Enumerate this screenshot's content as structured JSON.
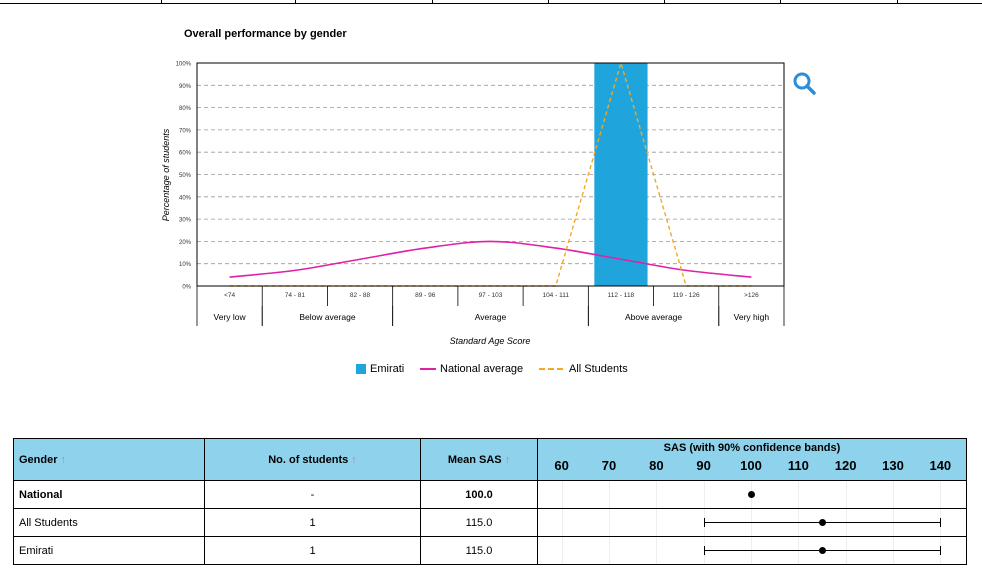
{
  "chart_data": {
    "type": "bar",
    "title": "Overall performance by gender",
    "xlabel": "Standard Age Score",
    "ylabel": "Percentage of students",
    "ylim": [
      0,
      100
    ],
    "yticks": [
      "0%",
      "10%",
      "20%",
      "30%",
      "40%",
      "50%",
      "60%",
      "70%",
      "80%",
      "90%",
      "100%"
    ],
    "categories": [
      "<74",
      "74 - 81",
      "82 - 88",
      "89 - 96",
      "97 - 103",
      "104 - 111",
      "112 - 118",
      "119 - 126",
      ">126"
    ],
    "bands": [
      {
        "label": "Very low",
        "from": 0,
        "to": 0
      },
      {
        "label": "Below average",
        "from": 1,
        "to": 2
      },
      {
        "label": "Average",
        "from": 3,
        "to": 5
      },
      {
        "label": "Above average",
        "from": 6,
        "to": 7
      },
      {
        "label": "Very high",
        "from": 8,
        "to": 8
      }
    ],
    "series": [
      {
        "name": "Emirati",
        "kind": "bar",
        "color": "#1fa5dc",
        "values": [
          0,
          0,
          0,
          0,
          0,
          0,
          100,
          0,
          0
        ]
      },
      {
        "name": "National average",
        "kind": "line",
        "color": "#e020a8",
        "values": [
          4,
          7,
          12,
          17,
          20,
          17,
          12,
          7,
          4
        ]
      },
      {
        "name": "All Students",
        "kind": "dashed",
        "color": "#f5a623",
        "values": [
          0,
          0,
          0,
          0,
          0,
          0,
          100,
          0,
          0
        ]
      }
    ],
    "grid": true,
    "legend": "bottom"
  },
  "table": {
    "headers": {
      "gender": "Gender",
      "students": "No. of students",
      "mean": "Mean SAS",
      "sas": "SAS (with 90% confidence bands)"
    },
    "sas_axis": {
      "min": 55,
      "max": 145,
      "ticks": [
        60,
        70,
        80,
        90,
        100,
        110,
        120,
        130,
        140
      ]
    },
    "rows": [
      {
        "gender": "National",
        "students": "-",
        "mean": "100.0",
        "value": 100,
        "ci": null
      },
      {
        "gender": "All Students",
        "students": "1",
        "mean": "115.0",
        "value": 115,
        "ci": [
          90,
          140
        ]
      },
      {
        "gender": "Emirati",
        "students": "1",
        "mean": "115.0",
        "value": 115,
        "ci": [
          90,
          140
        ]
      }
    ]
  }
}
